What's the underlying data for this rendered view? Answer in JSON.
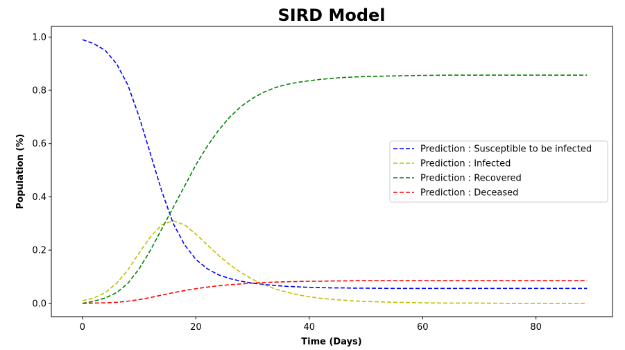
{
  "chart_data": {
    "type": "line",
    "title": "SIRD Model",
    "xlabel": "Time (Days)",
    "ylabel": "Population (%)",
    "xlim": [
      -5.5,
      93.5
    ],
    "ylim": [
      -0.05,
      1.04
    ],
    "xticks": [
      0,
      20,
      40,
      60,
      80
    ],
    "yticks": [
      0.0,
      0.2,
      0.4,
      0.6,
      0.8,
      1.0
    ],
    "xtick_labels": [
      "0",
      "20",
      "40",
      "60",
      "80"
    ],
    "ytick_labels": [
      "0.0",
      "0.2",
      "0.4",
      "0.6",
      "0.8",
      "1.0"
    ],
    "grid": false,
    "legend_position": "center-right",
    "line_style": "dashed",
    "x": [
      0,
      2,
      4,
      6,
      8,
      10,
      12,
      14,
      16,
      18,
      20,
      22,
      24,
      26,
      28,
      30,
      32,
      34,
      36,
      38,
      40,
      42,
      44,
      46,
      48,
      50,
      55,
      60,
      65,
      70,
      75,
      80,
      85,
      89
    ],
    "series": [
      {
        "name": "Prediction : Susceptible to be infected",
        "color": "#0000ff",
        "values": [
          0.99,
          0.975,
          0.95,
          0.9,
          0.82,
          0.7,
          0.56,
          0.42,
          0.3,
          0.22,
          0.165,
          0.13,
          0.107,
          0.093,
          0.083,
          0.076,
          0.071,
          0.067,
          0.064,
          0.062,
          0.06,
          0.059,
          0.058,
          0.058,
          0.057,
          0.057,
          0.056,
          0.056,
          0.056,
          0.056,
          0.056,
          0.056,
          0.056,
          0.056
        ]
      },
      {
        "name": "Prediction : Infected",
        "color": "#bfbf00",
        "values": [
          0.01,
          0.02,
          0.04,
          0.075,
          0.125,
          0.19,
          0.25,
          0.295,
          0.31,
          0.295,
          0.26,
          0.22,
          0.18,
          0.145,
          0.115,
          0.09,
          0.07,
          0.054,
          0.042,
          0.032,
          0.025,
          0.019,
          0.015,
          0.012,
          0.009,
          0.007,
          0.004,
          0.002,
          0.001,
          0.001,
          0.0,
          0.0,
          0.0,
          0.0
        ]
      },
      {
        "name": "Prediction : Recovered",
        "color": "#008000",
        "values": [
          0.0,
          0.008,
          0.02,
          0.04,
          0.075,
          0.13,
          0.2,
          0.28,
          0.36,
          0.44,
          0.52,
          0.59,
          0.65,
          0.7,
          0.74,
          0.77,
          0.793,
          0.81,
          0.822,
          0.83,
          0.836,
          0.841,
          0.845,
          0.848,
          0.85,
          0.852,
          0.854,
          0.856,
          0.857,
          0.857,
          0.857,
          0.857,
          0.857,
          0.857
        ]
      },
      {
        "name": "Prediction : Deceased",
        "color": "#ff0000",
        "values": [
          0.0,
          0.001,
          0.002,
          0.004,
          0.008,
          0.014,
          0.022,
          0.031,
          0.04,
          0.048,
          0.055,
          0.061,
          0.066,
          0.07,
          0.073,
          0.076,
          0.078,
          0.08,
          0.081,
          0.082,
          0.083,
          0.083,
          0.084,
          0.084,
          0.085,
          0.085,
          0.085,
          0.085,
          0.085,
          0.085,
          0.085,
          0.085,
          0.085,
          0.085
        ]
      }
    ]
  }
}
